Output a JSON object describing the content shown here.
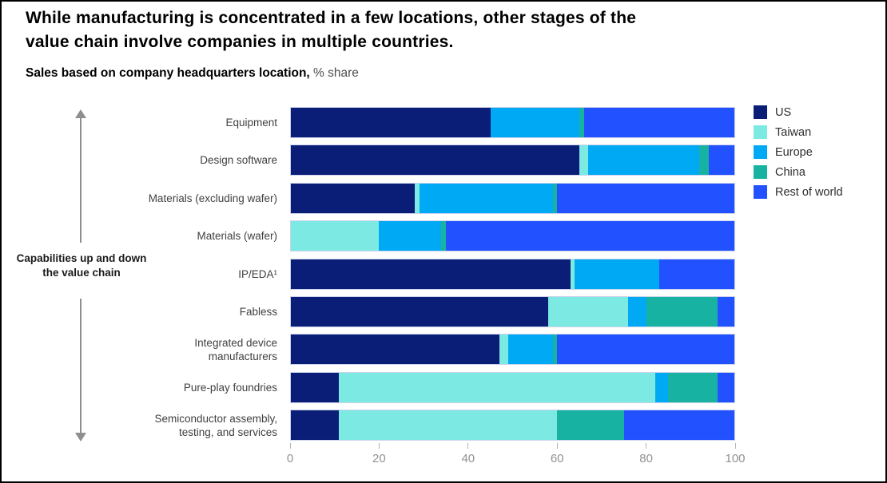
{
  "title": "While manufacturing is concentrated in a few locations, other stages of the\nvalue chain involve companies in multiple countries.",
  "subtitle": {
    "bold": "Sales based on company headquarters location,",
    "regular": " % share"
  },
  "left_annotation": "Capabilities up and down the value chain",
  "legend": [
    {
      "label": "US",
      "color": "#0A1E78"
    },
    {
      "label": "Taiwan",
      "color": "#7CEAE2"
    },
    {
      "label": "Europe",
      "color": "#00A9F4"
    },
    {
      "label": "China",
      "color": "#18B2A2"
    },
    {
      "label": "Rest of world",
      "color": "#2251FF"
    }
  ],
  "chart_data": {
    "type": "bar",
    "stacked": true,
    "orientation": "horizontal",
    "title": "Sales based on company headquarters location, % share",
    "xlabel": "% share",
    "ylabel": "",
    "xlim": [
      0,
      100
    ],
    "x_ticks": [
      0,
      20,
      40,
      60,
      80,
      100
    ],
    "grid": false,
    "legend_position": "top-right",
    "categories": [
      "Equipment",
      "Design software",
      "Materials (excluding wafer)",
      "Materials (wafer)",
      "IP/EDA¹",
      "Fabless",
      "Integrated device\nmanufacturers",
      "Pure-play foundries",
      "Semiconductor assembly,\ntesting, and services"
    ],
    "series": [
      {
        "name": "US",
        "color": "#0A1E78",
        "values": [
          45,
          65,
          28,
          0,
          63,
          58,
          47,
          11,
          11
        ]
      },
      {
        "name": "Taiwan",
        "color": "#7CEAE2",
        "values": [
          0,
          2,
          1,
          20,
          1,
          18,
          2,
          71,
          49
        ]
      },
      {
        "name": "Europe",
        "color": "#00A9F4",
        "values": [
          20,
          25,
          30,
          14,
          19,
          4,
          10,
          3,
          0
        ]
      },
      {
        "name": "China",
        "color": "#18B2A2",
        "values": [
          1,
          2,
          1,
          1,
          0,
          16,
          1,
          11,
          15
        ]
      },
      {
        "name": "Rest of world",
        "color": "#2251FF",
        "values": [
          34,
          6,
          40,
          65,
          17,
          4,
          40,
          4,
          25
        ]
      }
    ]
  }
}
